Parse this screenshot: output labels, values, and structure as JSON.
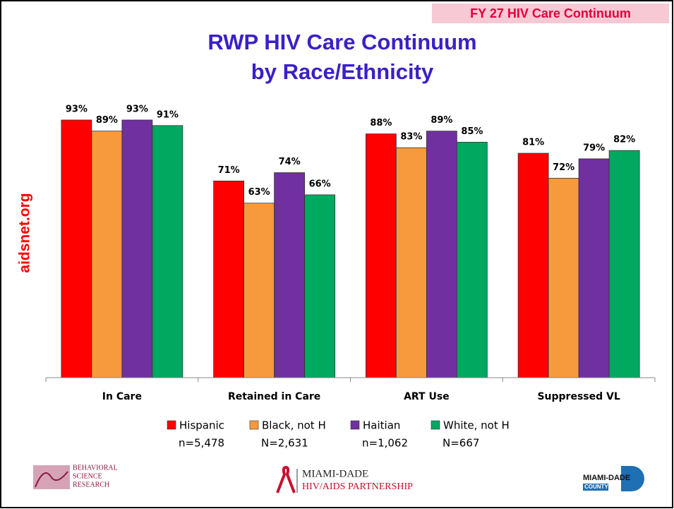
{
  "header": "FY 27 HIV Care Continuum",
  "side_label": "aidsnet.org",
  "logos": {
    "left": [
      "BEHAVIORAL",
      "SCIENCE",
      "RESEARCH"
    ],
    "center": [
      "MIAMI-DADE",
      "HIV/AIDS PARTNERSHIP"
    ],
    "right": [
      "MIAMI-DADE",
      "COUNTY"
    ]
  },
  "chart_data": {
    "type": "bar",
    "title": "RWP HIV Care Continuum",
    "subtitle": "by Race/Ethnicity",
    "categories": [
      "In Care",
      "Retained in Care",
      "ART Use",
      "Suppressed VL"
    ],
    "ylim": [
      0,
      100
    ],
    "series": [
      {
        "name": "Hispanic",
        "n": "n=5,478",
        "color": "#ff0000",
        "values": [
          93,
          71,
          88,
          81
        ],
        "value_labels": [
          "93%",
          "71%",
          "88%",
          "81%"
        ]
      },
      {
        "name": "Black, not H",
        "n": "N=2,631",
        "color": "#f79a3e",
        "values": [
          89,
          63,
          83,
          72
        ],
        "value_labels": [
          "89%",
          "63%",
          "83%",
          "72%"
        ]
      },
      {
        "name": "Haitian",
        "n": "n=1,062",
        "color": "#7030a0",
        "values": [
          93,
          74,
          89,
          79
        ],
        "value_labels": [
          "93%",
          "74%",
          "89%",
          "79%"
        ]
      },
      {
        "name": "White, not H",
        "n": "N=667",
        "color": "#00a860",
        "values": [
          91,
          66,
          85,
          82
        ],
        "value_labels": [
          "91%",
          "66%",
          "85%",
          "82%"
        ]
      }
    ],
    "legend": "bottom"
  }
}
